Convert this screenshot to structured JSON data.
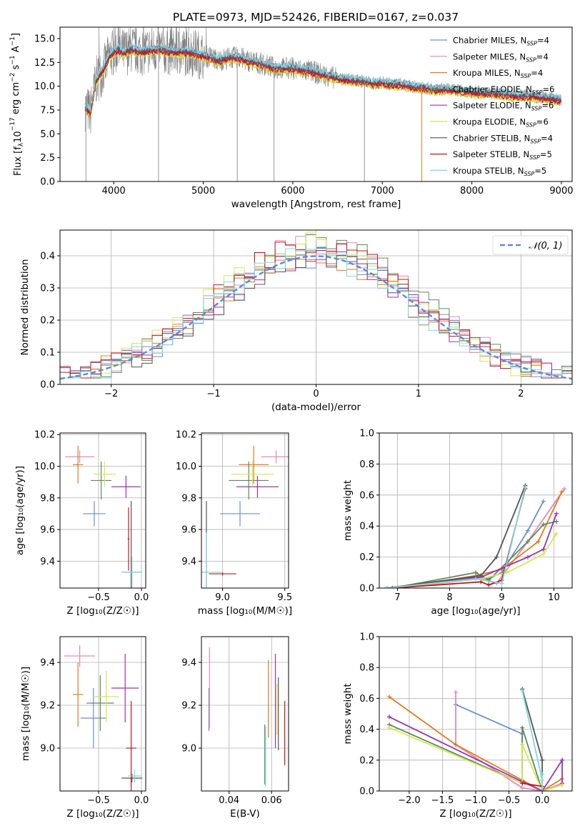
{
  "figure_title": "PLATE=0973, MJD=52426, FIBERID=0167, z=0.037",
  "colors": [
    "#6b8fd6",
    "#e887b5",
    "#e07b1a",
    "#5d8a5d",
    "#9b32b4",
    "#d4e84e",
    "#555555",
    "#c01818",
    "#7fd7de"
  ],
  "chart_data": [
    {
      "id": "spectrum",
      "type": "line",
      "title": "PLATE=0973, MJD=52426, FIBERID=0167, z=0.037",
      "xlabel": "wavelength [Angstrom, rest frame]",
      "ylabel_parts": [
        "Flux [f",
        "λ",
        "10",
        "−17",
        " erg cm",
        "−2",
        " s",
        "−1",
        " A",
        "−1",
        "]"
      ],
      "xlim": [
        3400,
        9120
      ],
      "ylim": [
        0,
        16.2
      ],
      "xticks": [
        4000,
        5000,
        6000,
        7000,
        8000,
        9000
      ],
      "yticks": [
        0.0,
        2.5,
        5.0,
        7.5,
        10.0,
        12.5,
        15.0
      ],
      "ytick_labels": [
        "0.0",
        "2.5",
        "5.0",
        "7.5",
        "10.0",
        "12.5",
        "15.0"
      ],
      "data_color": "#808080",
      "data_profile": [
        [
          3680,
          7.8
        ],
        [
          3740,
          7.2
        ],
        [
          3800,
          10.5
        ],
        [
          3900,
          12.0
        ],
        [
          3950,
          13.2
        ],
        [
          4000,
          13.6
        ],
        [
          4050,
          13.9
        ],
        [
          4100,
          13.5
        ],
        [
          4200,
          13.9
        ],
        [
          4300,
          13.6
        ],
        [
          4400,
          13.8
        ],
        [
          4500,
          13.9
        ],
        [
          4600,
          13.7
        ],
        [
          4700,
          13.6
        ],
        [
          4800,
          13.6
        ],
        [
          4900,
          13.5
        ],
        [
          5000,
          13.2
        ],
        [
          5100,
          13.0
        ],
        [
          5175,
          12.6
        ],
        [
          5200,
          12.8
        ],
        [
          5300,
          13.0
        ],
        [
          5400,
          13.0
        ],
        [
          5500,
          12.7
        ],
        [
          5600,
          12.5
        ],
        [
          5700,
          12.2
        ],
        [
          5800,
          11.9
        ],
        [
          5900,
          11.9
        ],
        [
          6000,
          11.9
        ],
        [
          6100,
          11.7
        ],
        [
          6200,
          11.6
        ],
        [
          6300,
          11.3
        ],
        [
          6400,
          11.1
        ],
        [
          6500,
          10.8
        ],
        [
          6600,
          10.7
        ],
        [
          6700,
          10.6
        ],
        [
          6800,
          10.5
        ],
        [
          6900,
          10.3
        ],
        [
          7000,
          10.4
        ],
        [
          7100,
          10.2
        ],
        [
          7200,
          10.2
        ],
        [
          7300,
          10.0
        ],
        [
          7400,
          9.9
        ],
        [
          7500,
          9.8
        ],
        [
          7600,
          9.6
        ],
        [
          7700,
          9.7
        ],
        [
          7800,
          9.6
        ],
        [
          7900,
          9.5
        ],
        [
          8000,
          9.4
        ],
        [
          8100,
          9.3
        ],
        [
          8200,
          9.3
        ],
        [
          8300,
          9.2
        ],
        [
          8400,
          9.1
        ],
        [
          8500,
          9.0
        ],
        [
          8600,
          9.0
        ],
        [
          8700,
          8.9
        ],
        [
          8800,
          8.8
        ],
        [
          8900,
          8.7
        ],
        [
          9000,
          8.5
        ]
      ],
      "model_offsets": [
        0.2,
        0.1,
        -0.3,
        0.0,
        -0.1,
        -0.4,
        0.1,
        -0.2,
        0.3
      ],
      "dropouts": [
        3690,
        4500,
        5380,
        5790,
        6800,
        7440
      ],
      "series": [
        {
          "name": "Chabrier MILES",
          "nssp": "4"
        },
        {
          "name": "Salpeter MILES",
          "nssp": "4"
        },
        {
          "name": "Kroupa MILES",
          "nssp": "4"
        },
        {
          "name": "Chabrier ELODIE",
          "nssp": "6"
        },
        {
          "name": "Salpeter ELODIE",
          "nssp": "6"
        },
        {
          "name": "Kroupa ELODIE",
          "nssp": "6"
        },
        {
          "name": "Chabrier STELIB",
          "nssp": "4"
        },
        {
          "name": "Salpeter STELIB",
          "nssp": "5"
        },
        {
          "name": "Kroupa STELIB",
          "nssp": "5"
        }
      ],
      "legend_label": ", N",
      "legend_sub": "SSP",
      "legend_placement": "upper-right"
    },
    {
      "id": "residuals",
      "type": "histogram",
      "xlabel": "(data-model)/error",
      "ylabel": "Normed distribution",
      "xlim": [
        -2.5,
        2.5
      ],
      "ylim": [
        0,
        0.48
      ],
      "xticks": [
        -2,
        -1,
        0,
        1,
        2
      ],
      "xtick_labels": [
        "−2",
        "−1",
        "0",
        "1",
        "2"
      ],
      "yticks": [
        0.0,
        0.1,
        0.2,
        0.3,
        0.4
      ],
      "ytick_labels": [
        "0.0",
        "0.1",
        "0.2",
        "0.3",
        "0.4"
      ],
      "grid": true,
      "bin_width": 0.1,
      "normal_curve": {
        "label": "𝒩(0, 1)",
        "mean": 0,
        "sigma": 1,
        "color": "#5b8bd4",
        "style": "dashed"
      },
      "legend_placement": "upper-right"
    },
    {
      "id": "z-age",
      "type": "errorbar",
      "xlabel": "Z [log₁₀(Z/Z☉)]",
      "ylabel": "age  [log₁₀(age/yr)]",
      "xlim": [
        -0.95,
        0.05
      ],
      "ylim": [
        9.23,
        10.21
      ],
      "xticks": [
        -0.5,
        0.0
      ],
      "xtick_labels": [
        "−0.5",
        "0.0"
      ],
      "yticks": [
        9.4,
        9.6,
        9.8,
        10.0,
        10.2
      ],
      "ytick_labels": [
        "9.4",
        "9.6",
        "9.8",
        "10.0",
        "10.2"
      ],
      "grid": true,
      "points": [
        {
          "x": -0.55,
          "y": 9.7,
          "xerr": 0.13,
          "yerr": 0.08
        },
        {
          "x": -0.72,
          "y": 10.06,
          "xerr": 0.17,
          "yerr": 0.04
        },
        {
          "x": -0.74,
          "y": 10.01,
          "xerr": 0.06,
          "yerr": 0.12
        },
        {
          "x": -0.47,
          "y": 9.91,
          "xerr": 0.12,
          "yerr": 0.12
        },
        {
          "x": -0.18,
          "y": 9.87,
          "xerr": 0.17,
          "yerr": 0.07
        },
        {
          "x": -0.43,
          "y": 9.95,
          "xerr": 0.13,
          "yerr": 0.08
        },
        {
          "x": -0.12,
          "y": 9.33,
          "xerr": 0.11,
          "yerr": 0.45
        },
        {
          "x": -0.15,
          "y": 9.54,
          "xerr": 0.01,
          "yerr": 0.2
        },
        {
          "x": -0.11,
          "y": 9.33,
          "xerr": 0.12,
          "yerr": 0.1
        }
      ]
    },
    {
      "id": "mass-age",
      "type": "errorbar",
      "xlabel": "mass [log₁₀(M/M☉)]",
      "xlim": [
        8.83,
        9.53
      ],
      "ylim": [
        9.23,
        10.21
      ],
      "xticks": [
        9.0,
        9.5
      ],
      "xtick_labels": [
        "9.0",
        "9.5"
      ],
      "yticks": [
        9.4,
        9.6,
        9.8,
        10.0,
        10.2
      ],
      "ytick_labels": [
        "9.4",
        "9.6",
        "9.8",
        "10.0",
        "10.2"
      ],
      "grid": true,
      "points": [
        {
          "x": 9.14,
          "y": 9.7,
          "xerr": 0.16,
          "yerr": 0.08
        },
        {
          "x": 9.43,
          "y": 10.06,
          "xerr": 0.12,
          "yerr": 0.04
        },
        {
          "x": 9.25,
          "y": 10.01,
          "xerr": 0.12,
          "yerr": 0.12
        },
        {
          "x": 9.21,
          "y": 9.91,
          "xerr": 0.16,
          "yerr": 0.12
        },
        {
          "x": 9.28,
          "y": 9.87,
          "xerr": 0.17,
          "yerr": 0.07
        },
        {
          "x": 9.24,
          "y": 9.95,
          "xerr": 0.17,
          "yerr": 0.08
        },
        {
          "x": 8.87,
          "y": 9.33,
          "xerr": 0.01,
          "yerr": 0.45
        },
        {
          "x": 9.0,
          "y": 9.32,
          "xerr": 0.11,
          "yerr": 0.01
        },
        {
          "x": 8.87,
          "y": 9.33,
          "xerr": 0.12,
          "yerr": 0.25
        }
      ]
    },
    {
      "id": "age-weight",
      "type": "line",
      "xlabel": "age  [log₁₀(age/yr)]",
      "ylabel": "mass weight",
      "xlim": [
        6.65,
        10.35
      ],
      "ylim": [
        0,
        1
      ],
      "xticks": [
        7,
        8,
        9,
        10
      ],
      "xtick_labels": [
        "7",
        "8",
        "9",
        "10"
      ],
      "yticks": [
        0.0,
        0.2,
        0.4,
        0.6,
        0.8,
        1.0
      ],
      "ytick_labels": [
        "0.0",
        "0.2",
        "0.4",
        "0.6",
        "0.8",
        "1.0"
      ],
      "grid": true,
      "lines": [
        [
          [
            6.8,
            0.0
          ],
          [
            8.5,
            0.07
          ],
          [
            8.75,
            0.06
          ],
          [
            9.0,
            0.1
          ],
          [
            9.5,
            0.37
          ],
          [
            9.8,
            0.56
          ]
        ],
        [
          [
            7.0,
            0.0
          ],
          [
            8.6,
            0.06
          ],
          [
            8.9,
            0.03
          ],
          [
            9.5,
            0.3
          ],
          [
            10.2,
            0.64
          ]
        ],
        [
          [
            7.0,
            0.0
          ],
          [
            8.5,
            0.08
          ],
          [
            9.0,
            0.12
          ],
          [
            9.7,
            0.3
          ],
          [
            10.15,
            0.62
          ]
        ],
        [
          [
            6.9,
            0.0
          ],
          [
            8.5,
            0.1
          ],
          [
            8.75,
            0.05
          ],
          [
            9.5,
            0.3
          ],
          [
            9.8,
            0.41
          ],
          [
            10.05,
            0.43
          ]
        ],
        [
          [
            6.9,
            0.0
          ],
          [
            8.6,
            0.07
          ],
          [
            9.5,
            0.2
          ],
          [
            9.8,
            0.25
          ],
          [
            10.05,
            0.48
          ]
        ],
        [
          [
            6.8,
            0.0
          ],
          [
            8.6,
            0.06
          ],
          [
            9.1,
            0.1
          ],
          [
            9.8,
            0.22
          ],
          [
            10.05,
            0.35
          ]
        ],
        [
          [
            6.8,
            0.0
          ],
          [
            8.6,
            0.08
          ],
          [
            8.9,
            0.2
          ],
          [
            9.45,
            0.66
          ]
        ],
        [
          [
            6.9,
            0.0
          ],
          [
            8.6,
            0.04
          ],
          [
            8.75,
            0.02
          ],
          [
            9.0,
            0.05
          ],
          [
            9.45,
            0.64
          ]
        ],
        [
          [
            6.8,
            0.0
          ],
          [
            8.5,
            0.06
          ],
          [
            9.0,
            0.03
          ],
          [
            9.45,
            0.65
          ]
        ]
      ]
    },
    {
      "id": "z-mass",
      "type": "errorbar",
      "xlabel": "Z [log₁₀(Z/Z☉)]",
      "ylabel": "mass [log₁₀(M/M☉)]",
      "xlim": [
        -0.95,
        0.05
      ],
      "ylim": [
        8.8,
        9.52
      ],
      "xticks": [
        -0.5,
        0.0
      ],
      "xtick_labels": [
        "−0.5",
        "0.0"
      ],
      "yticks": [
        9.0,
        9.2,
        9.4
      ],
      "ytick_labels": [
        "9.0",
        "9.2",
        "9.4"
      ],
      "grid": true,
      "points": [
        {
          "x": -0.56,
          "y": 9.14,
          "xerr": 0.15,
          "yerr": 0.14
        },
        {
          "x": -0.72,
          "y": 9.43,
          "xerr": 0.18,
          "yerr": 0.05
        },
        {
          "x": -0.74,
          "y": 9.25,
          "xerr": 0.06,
          "yerr": 0.15
        },
        {
          "x": -0.48,
          "y": 9.21,
          "xerr": 0.16,
          "yerr": 0.13
        },
        {
          "x": -0.19,
          "y": 9.28,
          "xerr": 0.16,
          "yerr": 0.16
        },
        {
          "x": -0.41,
          "y": 9.24,
          "xerr": 0.15,
          "yerr": 0.12
        },
        {
          "x": -0.11,
          "y": 8.86,
          "xerr": 0.12,
          "yerr": 0.02
        },
        {
          "x": -0.12,
          "y": 9.0,
          "xerr": 0.06,
          "yerr": 0.22
        },
        {
          "x": -0.08,
          "y": 8.87,
          "xerr": 0.08,
          "yerr": 0.03
        }
      ]
    },
    {
      "id": "ebv-mass",
      "type": "errorbar",
      "xlabel": "E(B-V)",
      "xlim": [
        0.027,
        0.068
      ],
      "ylim": [
        8.8,
        9.52
      ],
      "xticks": [
        0.04,
        0.06
      ],
      "xtick_labels": [
        "0.04",
        "0.06"
      ],
      "yticks": [
        9.0,
        9.2,
        9.4
      ],
      "ytick_labels": [
        "9.0",
        "9.2",
        "9.4"
      ],
      "grid": true,
      "points": [
        {
          "x": 0.0305,
          "y": 9.18,
          "yerr": 0.1
        },
        {
          "x": 0.0308,
          "y": 9.28,
          "yerr": 0.19
        },
        {
          "x": 0.0585,
          "y": 9.23,
          "yerr": 0.18
        },
        {
          "x": 0.0568,
          "y": 8.97,
          "yerr": 0.14
        },
        {
          "x": 0.0618,
          "y": 9.22,
          "yerr": 0.22
        },
        {
          "x": 0.0625,
          "y": 9.18,
          "yerr": 0.12
        },
        {
          "x": 0.0632,
          "y": 9.16,
          "yerr": 0.17
        },
        {
          "x": 0.0662,
          "y": 9.07,
          "yerr": 0.15
        },
        {
          "x": 0.0572,
          "y": 8.96,
          "yerr": 0.14
        }
      ]
    },
    {
      "id": "z-weight",
      "type": "line",
      "xlabel": "Z [log₁₀(Z/Z☉)]",
      "ylabel": "mass weight",
      "xlim": [
        -2.45,
        0.45
      ],
      "ylim": [
        0,
        1
      ],
      "xticks": [
        -2.0,
        -1.5,
        -1.0,
        -0.5,
        0.0
      ],
      "xtick_labels": [
        "−2.0",
        "−1.5",
        "−1.0",
        "−0.5",
        "0.0"
      ],
      "yticks": [
        0.0,
        0.2,
        0.4,
        0.6,
        0.8,
        1.0
      ],
      "ytick_labels": [
        "0.0",
        "0.2",
        "0.4",
        "0.6",
        "0.8",
        "1.0"
      ],
      "grid": true,
      "lines": [
        [
          [
            -1.3,
            0.56
          ],
          [
            -0.3,
            0.37
          ],
          [
            -0.3,
            0.07
          ],
          [
            0.0,
            0.0
          ],
          [
            0.0,
            0.11
          ]
        ],
        [
          [
            -1.3,
            0.64
          ],
          [
            -1.3,
            0.3
          ],
          [
            -0.3,
            0.02
          ],
          [
            0.0,
            0.0
          ],
          [
            0.3,
            0.05
          ]
        ],
        [
          [
            -2.3,
            0.61
          ],
          [
            -1.3,
            0.3
          ],
          [
            -0.3,
            0.07
          ],
          [
            0.0,
            0.0
          ],
          [
            0.3,
            0.08
          ]
        ],
        [
          [
            -2.3,
            0.43
          ],
          [
            -0.3,
            0.05
          ],
          [
            -0.3,
            0.41
          ],
          [
            0.0,
            0.0
          ],
          [
            0.3,
            0.04
          ]
        ],
        [
          [
            -2.3,
            0.48
          ],
          [
            -0.3,
            0.06
          ],
          [
            0.0,
            0.0
          ],
          [
            0.3,
            0.2
          ],
          [
            0.3,
            0.05
          ]
        ],
        [
          [
            -2.3,
            0.41
          ],
          [
            -0.3,
            0.05
          ],
          [
            -0.3,
            0.3
          ],
          [
            0.0,
            0.0
          ],
          [
            0.3,
            0.04
          ]
        ],
        [
          [
            -0.3,
            0.66
          ],
          [
            0.0,
            0.2
          ],
          [
            0.0,
            0.0
          ]
        ],
        [
          [
            -0.3,
            0.05
          ],
          [
            0.0,
            0.03
          ],
          [
            0.0,
            0.0
          ]
        ],
        [
          [
            -0.3,
            0.65
          ],
          [
            0.0,
            0.07
          ],
          [
            0.0,
            0.0
          ],
          [
            0.0,
            0.11
          ]
        ]
      ]
    }
  ]
}
